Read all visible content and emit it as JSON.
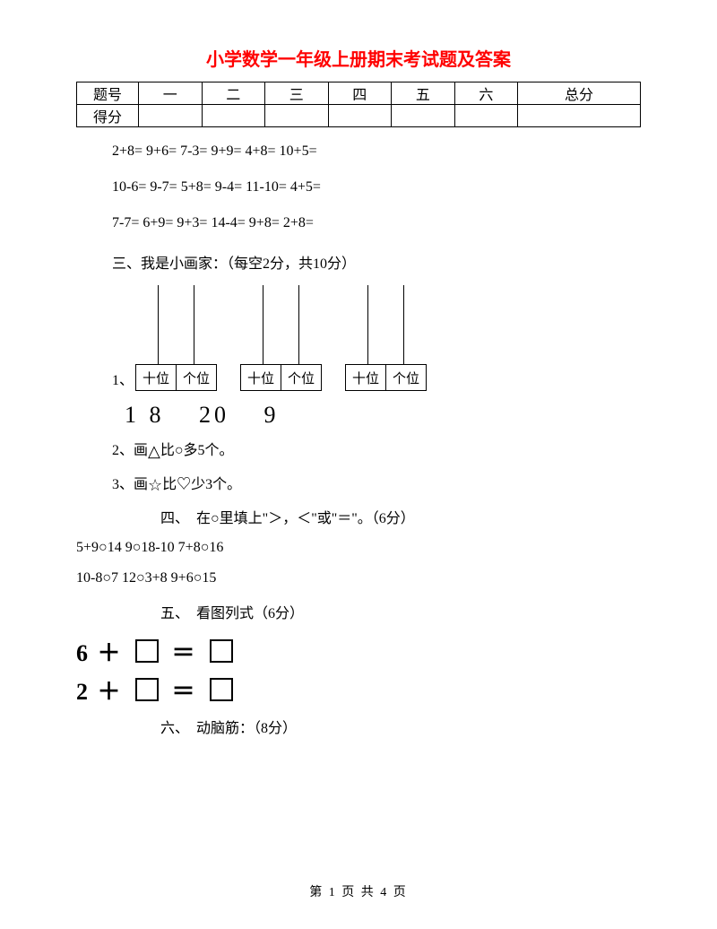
{
  "title": "小学数学一年级上册期末考试题及答案",
  "score_table": {
    "row1": [
      "题号",
      "一",
      "二",
      "三",
      "四",
      "五",
      "六",
      "总分"
    ],
    "row2_label": "得分"
  },
  "arith_rows": [
    "2+8=   9+6=   7-3=   9+9=   4+8=   10+5=",
    "10-6=   9-7=   5+8=   9-4=   11-10=   4+5=",
    "7-7=   6+9=   9+3=   14-4=   9+8=   2+8="
  ],
  "section3": "三、我是小画家：（每空2分，共10分）",
  "abacus_label_1": "1、",
  "digit_labels": {
    "tens": "十位",
    "ones": "个位"
  },
  "numbers": [
    "1 8",
    "20",
    "9"
  ],
  "q2_pre": "2、画",
  "q2_post": "比○多5个。",
  "q3_pre": "3、画",
  "q3_post": "比♡少3个。",
  "section4": "四、　在○里填上\"＞，＜\"或\"＝\"。（6分）",
  "cmp_rows": [
    "5+9○14   9○18-10   7+8○16",
    "10-8○7   12○3+8   9+6○15"
  ],
  "section5": "五、　看图列式（6分）",
  "eq_6": "6",
  "eq_2": "2",
  "plus": "＋",
  "equals": "＝",
  "section6": "六、　动脑筋：（8分）",
  "footer": "第 1 页 共 4 页",
  "colors": {
    "title": "#ff0000",
    "text": "#000000",
    "bg": "#ffffff"
  }
}
